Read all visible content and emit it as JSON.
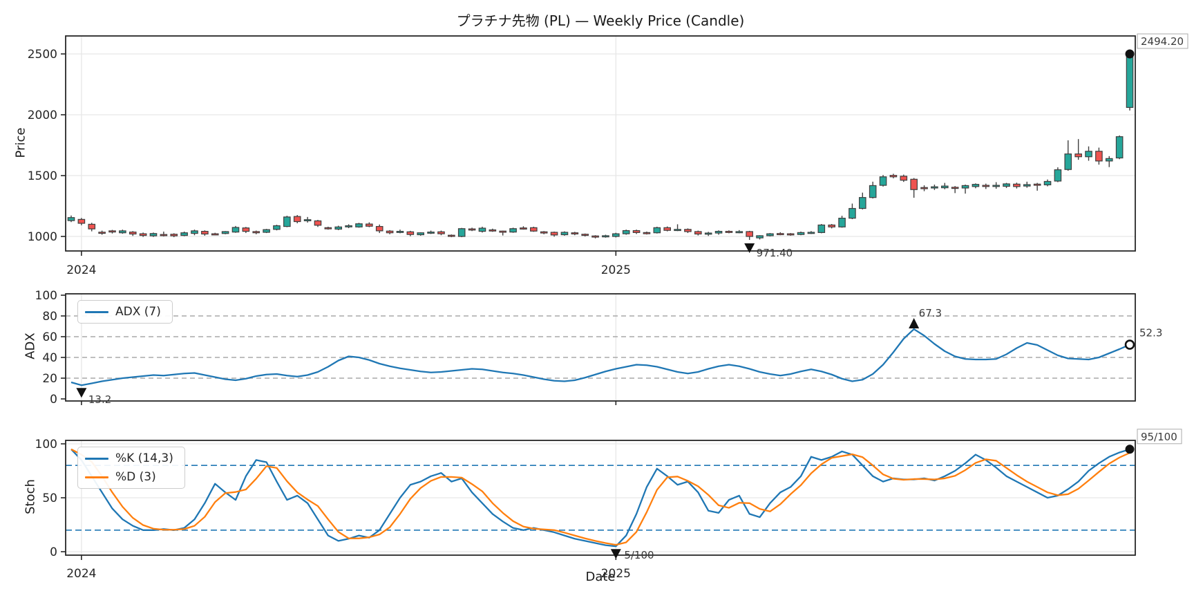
{
  "title": "プラチナ先物 (PL) — Weekly Price (Candle)",
  "chart_data": [
    {
      "id": "price",
      "type": "candlestick",
      "title": "プラチナ先物 (PL) — Weekly Price (Candle)",
      "ylabel": "Price",
      "yticks": [
        1000,
        1500,
        2000,
        2500
      ],
      "xticks": [
        {
          "label": "2024",
          "i": 1
        },
        {
          "label": "2025",
          "i": 53
        }
      ],
      "colors": {
        "up": "#26a69a",
        "down": "#ef5350",
        "wick": "#3f3f3f"
      },
      "candles": [
        [
          1130,
          1172,
          1118,
          1155
        ],
        [
          1140,
          1152,
          1092,
          1108
        ],
        [
          1100,
          1112,
          1042,
          1062
        ],
        [
          1035,
          1048,
          1014,
          1028
        ],
        [
          1046,
          1054,
          1024,
          1040
        ],
        [
          1030,
          1056,
          1022,
          1046
        ],
        [
          1036,
          1044,
          1004,
          1020
        ],
        [
          1022,
          1032,
          996,
          1008
        ],
        [
          1005,
          1032,
          996,
          1024
        ],
        [
          1016,
          1040,
          1000,
          1014
        ],
        [
          1018,
          1026,
          994,
          1005
        ],
        [
          1008,
          1040,
          1002,
          1030
        ],
        [
          1025,
          1056,
          1010,
          1046
        ],
        [
          1042,
          1050,
          1006,
          1020
        ],
        [
          1022,
          1030,
          1010,
          1016
        ],
        [
          1024,
          1044,
          1018,
          1040
        ],
        [
          1036,
          1086,
          1030,
          1074
        ],
        [
          1070,
          1078,
          1028,
          1042
        ],
        [
          1040,
          1048,
          1018,
          1030
        ],
        [
          1034,
          1062,
          1028,
          1056
        ],
        [
          1058,
          1096,
          1050,
          1088
        ],
        [
          1082,
          1170,
          1076,
          1160
        ],
        [
          1164,
          1176,
          1108,
          1122
        ],
        [
          1130,
          1160,
          1114,
          1138
        ],
        [
          1128,
          1136,
          1078,
          1092
        ],
        [
          1072,
          1080,
          1056,
          1064
        ],
        [
          1060,
          1088,
          1052,
          1078
        ],
        [
          1082,
          1100,
          1068,
          1088
        ],
        [
          1078,
          1112,
          1072,
          1104
        ],
        [
          1102,
          1116,
          1076,
          1084
        ],
        [
          1082,
          1098,
          1028,
          1046
        ],
        [
          1044,
          1052,
          1018,
          1030
        ],
        [
          1034,
          1056,
          1026,
          1042
        ],
        [
          1038,
          1046,
          1002,
          1016
        ],
        [
          1014,
          1034,
          1006,
          1030
        ],
        [
          1034,
          1048,
          1020,
          1036
        ],
        [
          1038,
          1048,
          1010,
          1022
        ],
        [
          1010,
          1016,
          994,
          1004
        ],
        [
          1000,
          1070,
          994,
          1064
        ],
        [
          1062,
          1072,
          1044,
          1054
        ],
        [
          1042,
          1080,
          1032,
          1068
        ],
        [
          1054,
          1064,
          1038,
          1048
        ],
        [
          1044,
          1048,
          1008,
          1038
        ],
        [
          1036,
          1072,
          1030,
          1064
        ],
        [
          1070,
          1084,
          1056,
          1066
        ],
        [
          1072,
          1080,
          1038,
          1044
        ],
        [
          1038,
          1044,
          1018,
          1028
        ],
        [
          1034,
          1040,
          998,
          1012
        ],
        [
          1014,
          1042,
          1006,
          1034
        ],
        [
          1030,
          1038,
          1010,
          1022
        ],
        [
          1018,
          1024,
          1000,
          1010
        ],
        [
          1004,
          1010,
          984,
          1000
        ],
        [
          1002,
          1014,
          990,
          1006
        ],
        [
          1000,
          1030,
          992,
          1022
        ],
        [
          1022,
          1056,
          1014,
          1048
        ],
        [
          1048,
          1056,
          1020,
          1032
        ],
        [
          1032,
          1040,
          1016,
          1026
        ],
        [
          1030,
          1080,
          1024,
          1072
        ],
        [
          1072,
          1082,
          1042,
          1050
        ],
        [
          1050,
          1100,
          1044,
          1058
        ],
        [
          1058,
          1066,
          1028,
          1040
        ],
        [
          1040,
          1048,
          1008,
          1020
        ],
        [
          1020,
          1038,
          1004,
          1028
        ],
        [
          1028,
          1050,
          1014,
          1042
        ],
        [
          1042,
          1050,
          1026,
          1036
        ],
        [
          1036,
          1052,
          1026,
          1040
        ],
        [
          1040,
          1046,
          971.4,
          1000
        ],
        [
          988,
          1010,
          975,
          1006
        ],
        [
          1006,
          1028,
          1000,
          1022
        ],
        [
          1024,
          1034,
          1010,
          1020
        ],
        [
          1022,
          1028,
          1006,
          1016
        ],
        [
          1016,
          1040,
          1010,
          1032
        ],
        [
          1032,
          1044,
          1020,
          1034
        ],
        [
          1032,
          1102,
          1026,
          1094
        ],
        [
          1094,
          1102,
          1066,
          1078
        ],
        [
          1078,
          1170,
          1072,
          1150
        ],
        [
          1150,
          1270,
          1142,
          1230
        ],
        [
          1230,
          1360,
          1222,
          1320
        ],
        [
          1320,
          1450,
          1312,
          1418
        ],
        [
          1420,
          1505,
          1410,
          1490
        ],
        [
          1502,
          1515,
          1478,
          1490
        ],
        [
          1495,
          1508,
          1448,
          1462
        ],
        [
          1470,
          1480,
          1318,
          1385
        ],
        [
          1402,
          1420,
          1372,
          1394
        ],
        [
          1398,
          1426,
          1382,
          1408
        ],
        [
          1400,
          1440,
          1388,
          1414
        ],
        [
          1404,
          1414,
          1356,
          1398
        ],
        [
          1398,
          1426,
          1352,
          1418
        ],
        [
          1410,
          1436,
          1396,
          1428
        ],
        [
          1420,
          1434,
          1390,
          1412
        ],
        [
          1414,
          1446,
          1392,
          1420
        ],
        [
          1412,
          1440,
          1398,
          1432
        ],
        [
          1430,
          1442,
          1394,
          1410
        ],
        [
          1414,
          1450,
          1400,
          1426
        ],
        [
          1430,
          1440,
          1376,
          1424
        ],
        [
          1424,
          1468,
          1412,
          1452
        ],
        [
          1455,
          1568,
          1446,
          1548
        ],
        [
          1550,
          1790,
          1540,
          1678
        ],
        [
          1678,
          1800,
          1630,
          1655
        ],
        [
          1655,
          1740,
          1622,
          1700
        ],
        [
          1700,
          1730,
          1590,
          1620
        ],
        [
          1620,
          1660,
          1570,
          1640
        ],
        [
          1645,
          1830,
          1635,
          1820
        ],
        [
          2060,
          2494.2,
          2035,
          2494.2
        ]
      ],
      "annotations": [
        {
          "text": "971.40",
          "i": 66,
          "value": 971.4,
          "marker": "triangle-down"
        },
        {
          "text": "2494.20",
          "i": 103,
          "value": 2494.2,
          "marker": "circle",
          "boxed": true,
          "side": "right"
        }
      ]
    },
    {
      "id": "adx",
      "type": "line",
      "ylabel": "ADX",
      "yticks": [
        0,
        20,
        40,
        60,
        80,
        100
      ],
      "dashed_gridlines": [
        20,
        40,
        60,
        80
      ],
      "legend": [
        {
          "label": "ADX (7)",
          "color": "#1f77b4"
        }
      ],
      "line_color": "#1f77b4",
      "values": [
        16,
        13.2,
        15,
        17,
        18.5,
        20,
        21,
        22,
        23,
        22.5,
        23.5,
        24.5,
        25,
        23,
        21,
        19,
        18,
        19.5,
        22,
        23.5,
        24,
        22.5,
        21.5,
        23,
        26,
        31,
        37,
        41,
        40,
        37.5,
        34,
        31.5,
        29.5,
        28,
        26.5,
        25.5,
        26,
        27,
        28,
        29,
        28.5,
        27,
        25.5,
        24.5,
        23,
        21,
        19,
        17.5,
        17,
        18,
        20.5,
        23.5,
        26.5,
        29,
        31,
        33,
        32.5,
        31,
        28.5,
        26,
        24.5,
        26,
        29,
        31.5,
        33,
        31.5,
        29,
        26,
        24,
        22.5,
        24,
        26.5,
        28.5,
        26.5,
        23.5,
        19.5,
        17,
        18.5,
        24,
        33,
        45,
        58,
        67.3,
        61,
        53,
        46,
        41,
        38.5,
        38,
        38,
        38.5,
        43,
        49,
        54,
        52,
        47,
        42,
        39,
        38.5,
        38,
        40,
        44,
        48,
        52.3
      ],
      "annotations": [
        {
          "text": "13.2",
          "i": 1,
          "value": 13.2,
          "marker": "triangle-down"
        },
        {
          "text": "67.3",
          "i": 82,
          "value": 67.3,
          "marker": "triangle-up"
        },
        {
          "text": "52.3",
          "i": 103,
          "value": 52.3,
          "marker": "circle-open",
          "side": "right"
        }
      ]
    },
    {
      "id": "stoch",
      "type": "line",
      "ylabel": "Stoch",
      "xlabel": "Date",
      "yticks": [
        0,
        50,
        100
      ],
      "light_gridlines": [
        0,
        50,
        100
      ],
      "dashed_levels": [
        20,
        80
      ],
      "dashed_level_color": "#1f77b4",
      "xticks": [
        {
          "label": "2024",
          "i": 1
        },
        {
          "label": "2025",
          "i": 53
        }
      ],
      "legend": [
        {
          "label": "%K (14,3)",
          "color": "#1f77b4"
        },
        {
          "label": "%D (3)",
          "color": "#ff7f0e"
        }
      ],
      "k_values": [
        95,
        85,
        70,
        55,
        40,
        30,
        24,
        20,
        20,
        21,
        20,
        22,
        30,
        45,
        63,
        55,
        48,
        70,
        85,
        83,
        65,
        48,
        52,
        45,
        30,
        15,
        10,
        12,
        15,
        13,
        20,
        35,
        50,
        62,
        65,
        70,
        73,
        65,
        68,
        55,
        45,
        35,
        28,
        22,
        20,
        22,
        20,
        18,
        15,
        12,
        10,
        8,
        6,
        5,
        15,
        35,
        60,
        77,
        70,
        62,
        65,
        55,
        38,
        36,
        48,
        52,
        35,
        32,
        45,
        55,
        60,
        70,
        88,
        85,
        88,
        93,
        90,
        80,
        70,
        65,
        68,
        67,
        67,
        68,
        66,
        70,
        75,
        82,
        90,
        85,
        78,
        70,
        65,
        60,
        55,
        50,
        52,
        58,
        65,
        75,
        82,
        88,
        92,
        95
      ],
      "d_smoothing": 3,
      "annotations": [
        {
          "text": "5/100",
          "i": 53,
          "value": 5,
          "marker": "triangle-down"
        },
        {
          "text": "95/100",
          "i": 103,
          "value": 95,
          "marker": "circle",
          "boxed": true,
          "side": "right"
        }
      ]
    }
  ]
}
